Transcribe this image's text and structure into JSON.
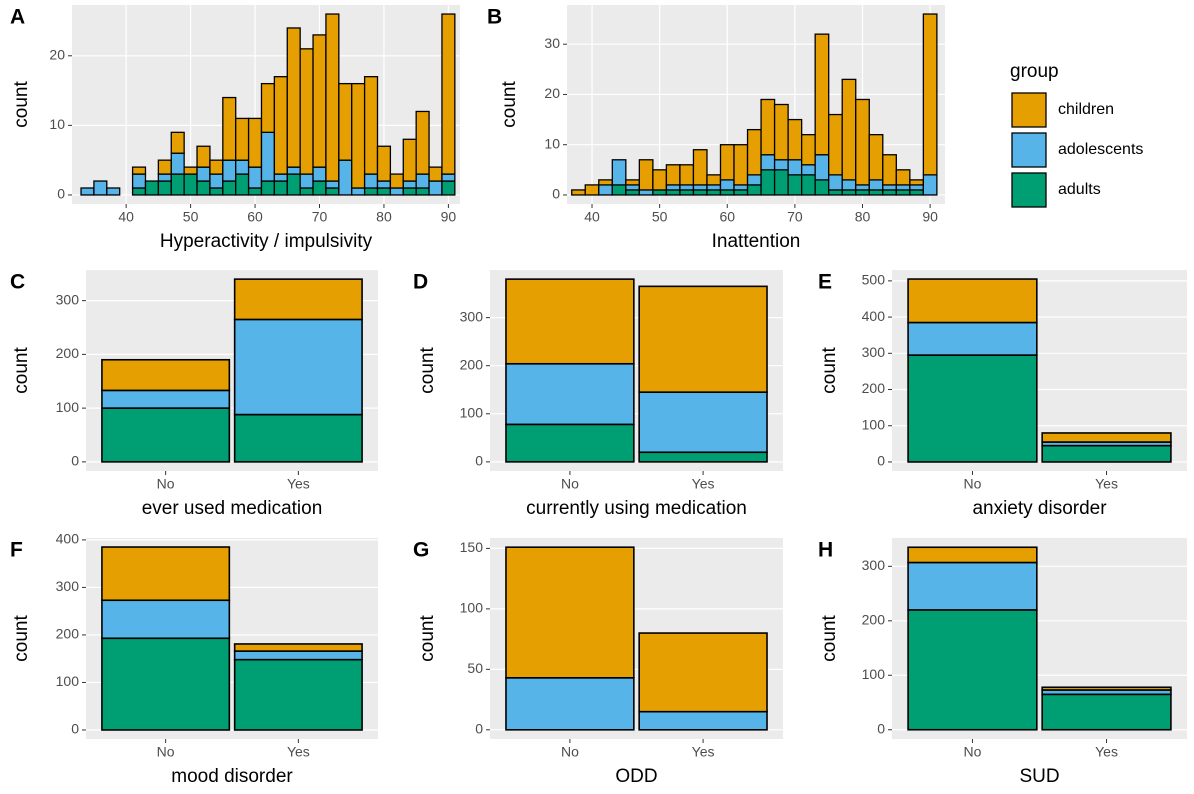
{
  "chart_data": [
    {
      "type": "histogram",
      "panel_label": "A",
      "xlabel": "Hyperactivity / impulsivity",
      "ylabel": "count",
      "legend_title": "group",
      "legend_position": "right",
      "grid": true,
      "bins": [
        33,
        35,
        37,
        39,
        41,
        43,
        45,
        47,
        49,
        51,
        53,
        55,
        57,
        59,
        61,
        63,
        65,
        67,
        69,
        71,
        73,
        75,
        77,
        79,
        81,
        83,
        85,
        87,
        89,
        91
      ],
      "series": [
        {
          "name": "children",
          "color": "#E69F00",
          "values": [
            0,
            0,
            0,
            0,
            1,
            0,
            2,
            3,
            1,
            3,
            2,
            9,
            6,
            7,
            7,
            14,
            20,
            18,
            19,
            24,
            11,
            15,
            14,
            5,
            2,
            6,
            9,
            2,
            23
          ]
        },
        {
          "name": "adolescents",
          "color": "#56B4E9",
          "values": [
            1,
            2,
            1,
            0,
            2,
            0,
            1,
            3,
            0,
            2,
            2,
            3,
            2,
            3,
            7,
            1,
            1,
            2,
            2,
            1,
            5,
            1,
            2,
            1,
            1,
            1,
            2,
            2,
            1
          ]
        },
        {
          "name": "adults",
          "color": "#009E73",
          "values": [
            0,
            0,
            0,
            0,
            1,
            2,
            2,
            3,
            3,
            2,
            1,
            2,
            3,
            1,
            2,
            2,
            3,
            1,
            2,
            1,
            0,
            0,
            1,
            1,
            0,
            1,
            1,
            0,
            2
          ]
        }
      ],
      "xlim": [
        31.6,
        91.8
      ],
      "xticks": [
        40,
        50,
        60,
        70,
        80,
        90
      ],
      "ylim": [
        -1.3,
        27.3
      ],
      "yticks": [
        0,
        10,
        20
      ]
    },
    {
      "type": "histogram",
      "panel_label": "B",
      "xlabel": "Inattention",
      "ylabel": "count",
      "grid": true,
      "bins": [
        37,
        39,
        41,
        43,
        45,
        47,
        49,
        51,
        53,
        55,
        57,
        59,
        61,
        63,
        65,
        67,
        69,
        71,
        73,
        75,
        77,
        79,
        81,
        83,
        85,
        87,
        89,
        91
      ],
      "series": [
        {
          "name": "children",
          "color": "#E69F00",
          "values": [
            1,
            2,
            1,
            0,
            1,
            6,
            4,
            4,
            4,
            7,
            2,
            7,
            8,
            9,
            11,
            11,
            8,
            6,
            24,
            12,
            20,
            17,
            9,
            6,
            3,
            1,
            32
          ]
        },
        {
          "name": "adolescents",
          "color": "#56B4E9",
          "values": [
            0,
            0,
            2,
            5,
            1,
            1,
            0,
            1,
            1,
            1,
            1,
            2,
            1,
            2,
            3,
            2,
            3,
            2,
            5,
            3,
            2,
            1,
            2,
            1,
            1,
            1,
            4
          ]
        },
        {
          "name": "adults",
          "color": "#009E73",
          "values": [
            0,
            0,
            0,
            2,
            1,
            0,
            1,
            1,
            1,
            1,
            1,
            1,
            1,
            2,
            5,
            5,
            4,
            4,
            3,
            1,
            1,
            1,
            1,
            1,
            1,
            1,
            0
          ]
        }
      ],
      "xlim": [
        36.3,
        92.2
      ],
      "xticks": [
        40,
        50,
        60,
        70,
        80,
        90
      ],
      "ylim": [
        -1.8,
        37.8
      ],
      "yticks": [
        0,
        10,
        20,
        30
      ]
    },
    {
      "type": "bar",
      "panel_label": "C",
      "xlabel": "ever used medication",
      "ylabel": "count",
      "grid": true,
      "categories": [
        "No",
        "Yes"
      ],
      "series": [
        {
          "name": "children",
          "color": "#E69F00",
          "values": [
            57,
            75
          ]
        },
        {
          "name": "adolescents",
          "color": "#56B4E9",
          "values": [
            33,
            177
          ]
        },
        {
          "name": "adults",
          "color": "#009E73",
          "values": [
            100,
            88
          ]
        }
      ],
      "ylim": [
        -17,
        357
      ],
      "yticks": [
        0,
        100,
        200,
        300
      ]
    },
    {
      "type": "bar",
      "panel_label": "D",
      "xlabel": "currently using medication",
      "ylabel": "count",
      "grid": true,
      "categories": [
        "No",
        "Yes"
      ],
      "series": [
        {
          "name": "children",
          "color": "#E69F00",
          "values": [
            176,
            220
          ]
        },
        {
          "name": "adolescents",
          "color": "#56B4E9",
          "values": [
            126,
            125
          ]
        },
        {
          "name": "adults",
          "color": "#009E73",
          "values": [
            78,
            20
          ]
        }
      ],
      "ylim": [
        -19,
        399
      ],
      "yticks": [
        0,
        100,
        200,
        300
      ]
    },
    {
      "type": "bar",
      "panel_label": "E",
      "xlabel": "anxiety disorder",
      "ylabel": "count",
      "grid": true,
      "categories": [
        "No",
        "Yes"
      ],
      "series": [
        {
          "name": "children",
          "color": "#E69F00",
          "values": [
            120,
            25
          ]
        },
        {
          "name": "adolescents",
          "color": "#56B4E9",
          "values": [
            90,
            10
          ]
        },
        {
          "name": "adults",
          "color": "#009E73",
          "values": [
            295,
            45
          ]
        }
      ],
      "ylim": [
        -25,
        530
      ],
      "yticks": [
        0,
        100,
        200,
        300,
        400,
        500
      ]
    },
    {
      "type": "bar",
      "panel_label": "F",
      "xlabel": "mood disorder",
      "ylabel": "count",
      "grid": true,
      "categories": [
        "No",
        "Yes"
      ],
      "series": [
        {
          "name": "children",
          "color": "#E69F00",
          "values": [
            112,
            15
          ]
        },
        {
          "name": "adolescents",
          "color": "#56B4E9",
          "values": [
            80,
            18
          ]
        },
        {
          "name": "adults",
          "color": "#009E73",
          "values": [
            193,
            148
          ]
        }
      ],
      "ylim": [
        -19,
        404
      ],
      "yticks": [
        0,
        100,
        200,
        300,
        400
      ]
    },
    {
      "type": "bar",
      "panel_label": "G",
      "xlabel": "ODD",
      "ylabel": "count",
      "grid": true,
      "categories": [
        "No",
        "Yes"
      ],
      "series": [
        {
          "name": "children",
          "color": "#E69F00",
          "values": [
            108,
            65
          ]
        },
        {
          "name": "adolescents",
          "color": "#56B4E9",
          "values": [
            43,
            15
          ]
        },
        {
          "name": "adults",
          "color": "#009E73",
          "values": [
            0,
            0
          ]
        }
      ],
      "ylim": [
        -7.6,
        158.6
      ],
      "yticks": [
        0,
        50,
        100,
        150
      ]
    },
    {
      "type": "bar",
      "panel_label": "H",
      "xlabel": "SUD",
      "ylabel": "count",
      "grid": true,
      "categories": [
        "No",
        "Yes"
      ],
      "series": [
        {
          "name": "children",
          "color": "#E69F00",
          "values": [
            28,
            5
          ]
        },
        {
          "name": "adolescents",
          "color": "#56B4E9",
          "values": [
            87,
            8
          ]
        },
        {
          "name": "adults",
          "color": "#009E73",
          "values": [
            220,
            65
          ]
        }
      ],
      "ylim": [
        -17,
        352
      ],
      "yticks": [
        0,
        100,
        200,
        300
      ]
    }
  ]
}
